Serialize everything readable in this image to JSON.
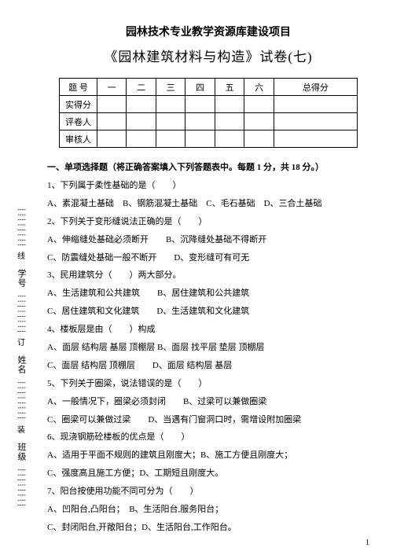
{
  "side": {
    "labels": [
      "学号",
      "姓名",
      "班级"
    ],
    "markers": [
      "线",
      "订",
      "装"
    ],
    "dots": "┊┊┊┊┊┊┊┊"
  },
  "header": {
    "line1": "园林技术专业教学资源库建设项目",
    "line2": "《园林建筑材料与构造》试卷(七)"
  },
  "table": {
    "cols": [
      "题 号",
      "一",
      "二",
      "三",
      "四",
      "五",
      "六",
      "总得分"
    ],
    "rows": [
      "实得分",
      "评卷人",
      "审核人"
    ]
  },
  "section": {
    "title": "一、单项选择题（将正确答案填入下列答题表中。每题 1 分，共 18 分。）"
  },
  "q": [
    {
      "stem": "1、下列属于柔性基础的是（　　）",
      "opts": "A、素混凝土基础　B、钢筋混凝土基础　C、毛石基础　D、三合土基础"
    },
    {
      "stem": "2、下列关于变形缝说法正确的是（　　）",
      "opts": "A、伸缩缝处基础必须断开　　B、沉降缝处基础不得断开",
      "opts2": "C、防震缝处基础一般不断开　　D、变形缝可有可无"
    },
    {
      "stem": "3、民用建筑分（　　）两大部分。",
      "opts": "A、生活建筑和公共建筑　　B、居住建筑和公共建筑",
      "opts2": "C、居住建筑和文化建筑　　D、生活建筑和文化建筑"
    },
    {
      "stem": "4、楼板层是由（　　）构成",
      "opts": "A、面层 结构层 基层 顶棚层 B、面层 找平层 垫层 顶棚层",
      "opts2": "C、面层 结构层 顶棚层　　D、面层 结构层 基层"
    },
    {
      "stem": "5、下列关于圈梁，说法错误的是（　　）",
      "opts": "A、一般情况下，圈梁必须封闭　　B、过梁可以兼做圈梁",
      "opts2": "C、圈梁可以兼做过梁　　D、当遇有门窗洞口时，需增设附加圈梁"
    },
    {
      "stem": "6、现浇钢筋砼楼板的优点是（　　）",
      "opts": "A、适用于平面不规则的建筑且刚度大；B、施工方便且刚度大；",
      "opts2": "C、强度高且施工方便；D、工期短且刚度大。"
    },
    {
      "stem": "7、阳台按使用功能不同可分为（　　）",
      "opts": "A、凹阳台,凸阳台；　B、生活阳台,服务阳台；",
      "opts2": "C、封闭阳台,开敞阳台；D、生活阳台,工作阳台。"
    }
  ],
  "pageNum": "1"
}
